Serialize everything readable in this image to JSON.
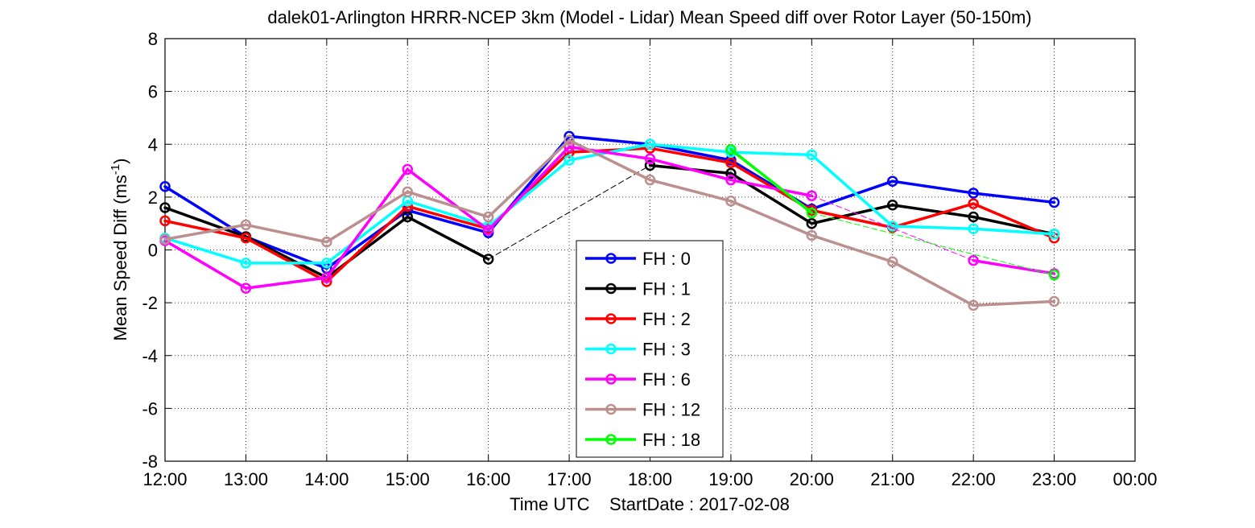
{
  "chart_data": {
    "type": "line",
    "title": "dalek01-Arlington HRRR-NCEP 3km (Model - Lidar) Mean Speed diff over Rotor Layer (50-150m)",
    "ylabel_main": "Mean Speed Diff (ms",
    "ylabel_sup": "-1",
    "ylabel_close": ")",
    "xlabel": "Time UTC    StartDate : 2017-02-08",
    "xticks": [
      "12:00",
      "13:00",
      "14:00",
      "15:00",
      "16:00",
      "17:00",
      "18:00",
      "19:00",
      "20:00",
      "21:00",
      "22:00",
      "23:00",
      "00:00"
    ],
    "yticks": [
      "8",
      "6",
      "4",
      "2",
      "0",
      "-2",
      "-4",
      "-6",
      "-8"
    ],
    "ytick_values": [
      8,
      6,
      4,
      2,
      0,
      -2,
      -4,
      -6,
      -8
    ],
    "xlim": [
      0,
      12
    ],
    "ylim": [
      -8,
      8
    ],
    "grid": true,
    "legend_position": "bottom-center",
    "series": [
      {
        "name": "FH : 0",
        "color": "#0000ff",
        "x": [
          0,
          1,
          2,
          3,
          4,
          5,
          6,
          7,
          8,
          9,
          10,
          11
        ],
        "y": [
          2.4,
          0.5,
          -0.7,
          1.5,
          0.65,
          4.3,
          4.0,
          3.4,
          1.55,
          2.6,
          2.15,
          1.8
        ],
        "gaps": []
      },
      {
        "name": "FH : 1",
        "color": "#000000",
        "x": [
          0,
          1,
          2,
          3,
          4,
          6,
          7,
          8,
          9,
          10,
          11
        ],
        "y": [
          1.6,
          0.5,
          -1.05,
          1.25,
          -0.35,
          3.2,
          2.9,
          1.0,
          1.7,
          1.25,
          0.6
        ],
        "gaps": [
          [
            4,
            6
          ]
        ]
      },
      {
        "name": "FH : 2",
        "color": "#ff0000",
        "x": [
          0,
          1,
          2,
          3,
          4,
          5,
          6,
          7,
          8,
          9,
          10,
          11
        ],
        "y": [
          1.1,
          0.45,
          -1.2,
          1.65,
          0.8,
          3.7,
          3.85,
          3.3,
          1.5,
          0.85,
          1.75,
          0.45
        ],
        "gaps": []
      },
      {
        "name": "FH : 3",
        "color": "#00ffff",
        "x": [
          0,
          1,
          2,
          3,
          4,
          5,
          6,
          7,
          8,
          9,
          10,
          11
        ],
        "y": [
          0.45,
          -0.5,
          -0.5,
          1.85,
          0.9,
          3.4,
          4.0,
          3.7,
          3.6,
          0.9,
          0.8,
          0.6
        ],
        "gaps": []
      },
      {
        "name": "FH : 6",
        "color": "#ff00ff",
        "x": [
          0,
          1,
          2,
          3,
          4,
          5,
          6,
          7,
          8,
          10,
          11
        ],
        "y": [
          0.35,
          -1.45,
          -1.05,
          3.05,
          0.75,
          3.9,
          3.45,
          2.65,
          2.05,
          -0.4,
          -0.9
        ],
        "gaps": [
          [
            8,
            10
          ]
        ]
      },
      {
        "name": "FH : 12",
        "color": "#bc8f8f",
        "x": [
          0,
          1,
          2,
          3,
          4,
          5,
          6,
          7,
          8,
          9,
          10,
          11
        ],
        "y": [
          0.4,
          0.95,
          0.3,
          2.2,
          1.25,
          4.15,
          2.65,
          1.85,
          0.55,
          -0.45,
          -2.1,
          -1.95
        ],
        "gaps": []
      },
      {
        "name": "FH : 18",
        "color": "#00ff00",
        "x": [
          7,
          8,
          11
        ],
        "y": [
          3.8,
          1.4,
          -0.95
        ],
        "gaps": [
          [
            8,
            11
          ]
        ]
      }
    ]
  }
}
